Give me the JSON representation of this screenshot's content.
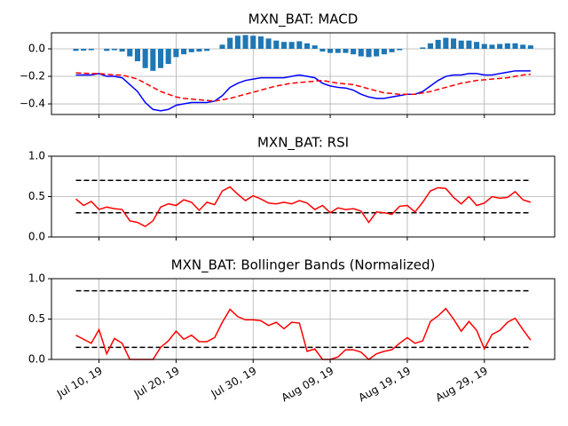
{
  "chart_data": [
    {
      "type": "combo",
      "title": "MXN_BAT: MACD",
      "sharex": true,
      "grid": true,
      "ylim": [
        -0.477,
        0.116
      ],
      "yticks": [
        {
          "value": 0.0,
          "label": "0.0"
        },
        {
          "value": -0.2,
          "label": "−0.2"
        },
        {
          "value": -0.4,
          "label": "−0.4"
        }
      ],
      "series": [
        {
          "type": "bar",
          "color": "#1f77b4",
          "values": [
            -0.015,
            -0.013,
            -0.01,
            0.0,
            -0.015,
            -0.01,
            -0.02,
            -0.055,
            -0.09,
            -0.14,
            -0.16,
            -0.14,
            -0.11,
            -0.06,
            -0.04,
            -0.025,
            -0.02,
            -0.015,
            0.0,
            0.03,
            0.08,
            0.095,
            0.1,
            0.095,
            0.09,
            0.075,
            0.06,
            0.05,
            0.05,
            0.055,
            0.04,
            0.025,
            -0.02,
            -0.03,
            -0.03,
            -0.03,
            -0.04,
            -0.055,
            -0.06,
            -0.055,
            -0.04,
            -0.025,
            -0.01,
            0.0,
            0.0,
            0.01,
            0.04,
            0.065,
            0.08,
            0.075,
            0.06,
            0.06,
            0.05,
            0.035,
            0.03,
            0.035,
            0.04,
            0.04,
            0.03,
            0.025
          ]
        },
        {
          "type": "line",
          "color": "#0000ff",
          "linestyle": "solid",
          "values": [
            -0.19,
            -0.19,
            -0.19,
            -0.18,
            -0.2,
            -0.2,
            -0.21,
            -0.26,
            -0.31,
            -0.39,
            -0.44,
            -0.45,
            -0.44,
            -0.41,
            -0.4,
            -0.39,
            -0.39,
            -0.39,
            -0.38,
            -0.34,
            -0.28,
            -0.25,
            -0.23,
            -0.22,
            -0.21,
            -0.21,
            -0.21,
            -0.21,
            -0.2,
            -0.19,
            -0.2,
            -0.21,
            -0.25,
            -0.27,
            -0.28,
            -0.285,
            -0.3,
            -0.33,
            -0.35,
            -0.36,
            -0.36,
            -0.35,
            -0.34,
            -0.33,
            -0.33,
            -0.31,
            -0.27,
            -0.23,
            -0.2,
            -0.19,
            -0.19,
            -0.18,
            -0.18,
            -0.19,
            -0.19,
            -0.18,
            -0.17,
            -0.16,
            -0.16,
            -0.16
          ]
        },
        {
          "type": "line",
          "color": "#ff0000",
          "linestyle": "dashed",
          "values": [
            -0.175,
            -0.177,
            -0.18,
            -0.18,
            -0.185,
            -0.19,
            -0.19,
            -0.205,
            -0.22,
            -0.25,
            -0.28,
            -0.31,
            -0.33,
            -0.35,
            -0.36,
            -0.365,
            -0.37,
            -0.375,
            -0.38,
            -0.37,
            -0.36,
            -0.345,
            -0.33,
            -0.315,
            -0.3,
            -0.285,
            -0.27,
            -0.26,
            -0.25,
            -0.245,
            -0.24,
            -0.235,
            -0.23,
            -0.24,
            -0.25,
            -0.255,
            -0.26,
            -0.275,
            -0.29,
            -0.305,
            -0.32,
            -0.325,
            -0.33,
            -0.33,
            -0.33,
            -0.32,
            -0.31,
            -0.295,
            -0.28,
            -0.265,
            -0.25,
            -0.24,
            -0.23,
            -0.225,
            -0.22,
            -0.215,
            -0.21,
            -0.2,
            -0.19,
            -0.185
          ]
        }
      ]
    },
    {
      "type": "line",
      "title": "MXN_BAT: RSI",
      "sharex": true,
      "grid": true,
      "ylim": [
        0,
        1
      ],
      "yticks": [
        {
          "value": 0.0,
          "label": "0.0"
        },
        {
          "value": 0.5,
          "label": "0.5"
        },
        {
          "value": 1.0,
          "label": "1.0"
        }
      ],
      "hlines": [
        0.7,
        0.3
      ],
      "hline_color": "#000000",
      "hline_style": "dashed",
      "series": [
        {
          "type": "line",
          "color": "#ff0000",
          "linestyle": "solid",
          "values": [
            0.47,
            0.39,
            0.44,
            0.34,
            0.37,
            0.35,
            0.34,
            0.2,
            0.18,
            0.13,
            0.2,
            0.37,
            0.41,
            0.39,
            0.46,
            0.43,
            0.33,
            0.43,
            0.4,
            0.57,
            0.62,
            0.53,
            0.45,
            0.51,
            0.47,
            0.42,
            0.41,
            0.43,
            0.41,
            0.45,
            0.42,
            0.34,
            0.39,
            0.3,
            0.36,
            0.34,
            0.35,
            0.32,
            0.18,
            0.31,
            0.3,
            0.28,
            0.38,
            0.39,
            0.31,
            0.43,
            0.57,
            0.61,
            0.6,
            0.49,
            0.41,
            0.5,
            0.39,
            0.42,
            0.5,
            0.48,
            0.49,
            0.56,
            0.46,
            0.43
          ]
        }
      ]
    },
    {
      "type": "line",
      "title": "MXN_BAT: Bollinger Bands (Normalized)",
      "grid": true,
      "ylim": [
        0,
        1
      ],
      "yticks": [
        {
          "value": 0.0,
          "label": "0.0"
        },
        {
          "value": 0.5,
          "label": "0.5"
        },
        {
          "value": 1.0,
          "label": "1.0"
        }
      ],
      "hlines": [
        0.85,
        0.15
      ],
      "hline_color": "#000000",
      "hline_style": "dashed",
      "x": [
        "2019-07-07",
        "2019-07-08",
        "2019-07-09",
        "2019-07-10",
        "2019-07-11",
        "2019-07-12",
        "2019-07-13",
        "2019-07-14",
        "2019-07-15",
        "2019-07-16",
        "2019-07-17",
        "2019-07-18",
        "2019-07-19",
        "2019-07-20",
        "2019-07-21",
        "2019-07-22",
        "2019-07-23",
        "2019-07-24",
        "2019-07-25",
        "2019-07-26",
        "2019-07-27",
        "2019-07-28",
        "2019-07-29",
        "2019-07-30",
        "2019-07-31",
        "2019-08-01",
        "2019-08-02",
        "2019-08-03",
        "2019-08-04",
        "2019-08-05",
        "2019-08-06",
        "2019-08-07",
        "2019-08-08",
        "2019-08-09",
        "2019-08-10",
        "2019-08-11",
        "2019-08-12",
        "2019-08-13",
        "2019-08-14",
        "2019-08-15",
        "2019-08-16",
        "2019-08-17",
        "2019-08-18",
        "2019-08-19",
        "2019-08-20",
        "2019-08-21",
        "2019-08-22",
        "2019-08-23",
        "2019-08-24",
        "2019-08-25",
        "2019-08-26",
        "2019-08-27",
        "2019-08-28",
        "2019-08-29",
        "2019-08-30",
        "2019-08-31",
        "2019-09-01",
        "2019-09-02",
        "2019-09-03",
        "2019-09-04"
      ],
      "xlim": [
        "2019-07-03T20:00",
        "2019-09-07T03:00"
      ],
      "xticks": [
        {
          "value": "2019-07-10",
          "label": "Jul 10, 19"
        },
        {
          "value": "2019-07-20",
          "label": "Jul 20, 19"
        },
        {
          "value": "2019-07-30",
          "label": "Jul 30, 19"
        },
        {
          "value": "2019-08-09",
          "label": "Aug 09, 19"
        },
        {
          "value": "2019-08-19",
          "label": "Aug 19, 19"
        },
        {
          "value": "2019-08-29",
          "label": "Aug 29, 19"
        }
      ],
      "series": [
        {
          "type": "line",
          "color": "#ff0000",
          "linestyle": "solid",
          "values": [
            0.3,
            0.25,
            0.2,
            0.37,
            0.07,
            0.26,
            0.2,
            0.0,
            0.0,
            0.0,
            0.0,
            0.15,
            0.23,
            0.35,
            0.25,
            0.3,
            0.22,
            0.22,
            0.27,
            0.46,
            0.62,
            0.53,
            0.49,
            0.49,
            0.48,
            0.42,
            0.46,
            0.38,
            0.46,
            0.45,
            0.1,
            0.13,
            0.0,
            0.0,
            0.03,
            0.12,
            0.12,
            0.09,
            0.0,
            0.07,
            0.1,
            0.12,
            0.2,
            0.27,
            0.2,
            0.23,
            0.47,
            0.54,
            0.63,
            0.5,
            0.35,
            0.47,
            0.36,
            0.13,
            0.31,
            0.36,
            0.46,
            0.51,
            0.37,
            0.24
          ]
        }
      ]
    }
  ]
}
